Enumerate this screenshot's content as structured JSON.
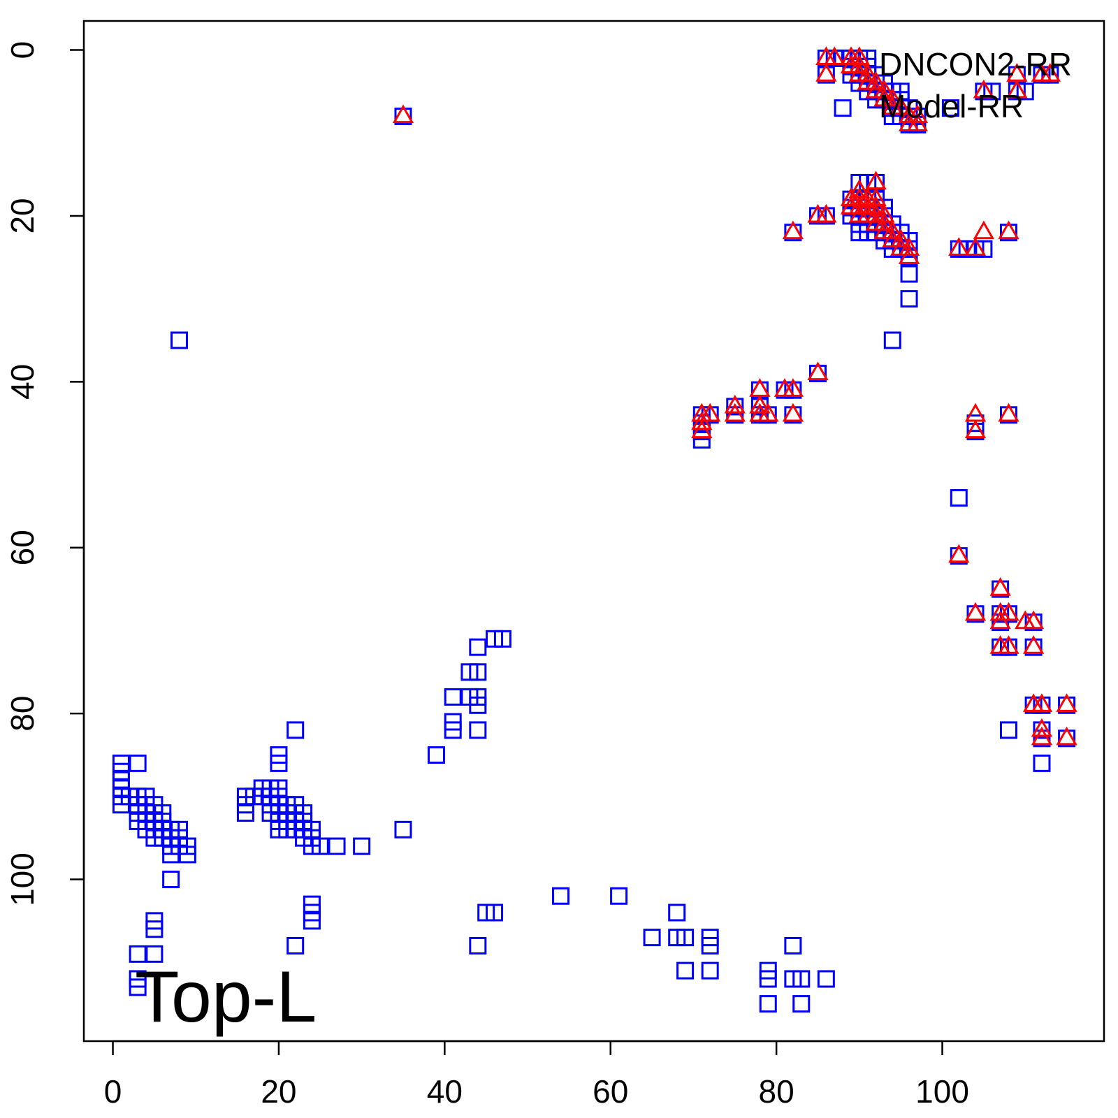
{
  "chart_data": {
    "type": "scatter",
    "title": "",
    "xlabel": "",
    "ylabel": "",
    "xlim": [
      -3.5,
      119.5
    ],
    "ylim": [
      119.5,
      -3.5
    ],
    "y_reversed": true,
    "xticks": [
      0,
      20,
      40,
      60,
      80,
      100
    ],
    "yticks": [
      0,
      20,
      40,
      60,
      80,
      100
    ],
    "grid": false,
    "legend_position": "top-right",
    "annotation": "Top-L",
    "series": [
      {
        "name": "DNCON2-RR",
        "marker": "square",
        "color": "#0000ff",
        "points": [
          [
            35,
            8
          ],
          [
            86,
            1
          ],
          [
            87,
            1
          ],
          [
            88,
            1
          ],
          [
            89,
            1
          ],
          [
            90,
            1
          ],
          [
            91,
            1
          ],
          [
            86,
            3
          ],
          [
            88,
            7
          ],
          [
            89,
            2
          ],
          [
            90,
            2
          ],
          [
            91,
            2
          ],
          [
            89,
            3
          ],
          [
            90,
            3
          ],
          [
            91,
            3
          ],
          [
            92,
            3
          ],
          [
            90,
            4
          ],
          [
            91,
            4
          ],
          [
            92,
            4
          ],
          [
            93,
            4
          ],
          [
            91,
            5
          ],
          [
            92,
            5
          ],
          [
            93,
            5
          ],
          [
            94,
            5
          ],
          [
            95,
            5
          ],
          [
            92,
            6
          ],
          [
            93,
            6
          ],
          [
            94,
            6
          ],
          [
            95,
            6
          ],
          [
            94,
            7
          ],
          [
            95,
            7
          ],
          [
            96,
            7
          ],
          [
            94,
            8
          ],
          [
            95,
            8
          ],
          [
            96,
            8
          ],
          [
            96,
            9
          ],
          [
            97,
            9
          ],
          [
            97,
            8
          ],
          [
            101,
            7
          ],
          [
            105,
            5
          ],
          [
            106,
            5
          ],
          [
            109,
            3
          ],
          [
            109,
            5
          ],
          [
            110,
            5
          ],
          [
            112,
            3
          ],
          [
            113,
            3
          ],
          [
            90,
            16
          ],
          [
            91,
            16
          ],
          [
            92,
            16
          ],
          [
            89,
            18
          ],
          [
            90,
            18
          ],
          [
            91,
            18
          ],
          [
            92,
            18
          ],
          [
            89,
            19
          ],
          [
            90,
            19
          ],
          [
            91,
            19
          ],
          [
            92,
            19
          ],
          [
            93,
            19
          ],
          [
            89,
            20
          ],
          [
            90,
            20
          ],
          [
            91,
            20
          ],
          [
            92,
            20
          ],
          [
            93,
            20
          ],
          [
            90,
            21
          ],
          [
            91,
            21
          ],
          [
            92,
            21
          ],
          [
            93,
            21
          ],
          [
            94,
            21
          ],
          [
            90,
            22
          ],
          [
            91,
            22
          ],
          [
            92,
            22
          ],
          [
            93,
            22
          ],
          [
            94,
            22
          ],
          [
            95,
            22
          ],
          [
            93,
            23
          ],
          [
            94,
            23
          ],
          [
            95,
            23
          ],
          [
            96,
            23
          ],
          [
            94,
            24
          ],
          [
            95,
            24
          ],
          [
            96,
            24
          ],
          [
            96,
            25
          ],
          [
            96,
            27
          ],
          [
            96,
            30
          ],
          [
            94,
            35
          ],
          [
            82,
            22
          ],
          [
            85,
            20
          ],
          [
            86,
            20
          ],
          [
            102,
            24
          ],
          [
            103,
            24
          ],
          [
            104,
            24
          ],
          [
            105,
            24
          ],
          [
            108,
            22
          ],
          [
            85,
            39
          ],
          [
            78,
            41
          ],
          [
            81,
            41
          ],
          [
            82,
            41
          ],
          [
            75,
            43
          ],
          [
            78,
            43
          ],
          [
            71,
            44
          ],
          [
            72,
            44
          ],
          [
            75,
            44
          ],
          [
            78,
            44
          ],
          [
            79,
            44
          ],
          [
            82,
            44
          ],
          [
            71,
            45
          ],
          [
            71,
            46
          ],
          [
            71,
            47
          ],
          [
            104,
            45
          ],
          [
            104,
            46
          ],
          [
            108,
            44
          ],
          [
            102,
            54
          ],
          [
            102,
            61
          ],
          [
            107,
            65
          ],
          [
            104,
            68
          ],
          [
            107,
            68
          ],
          [
            108,
            68
          ],
          [
            107,
            69
          ],
          [
            111,
            69
          ],
          [
            107,
            72
          ],
          [
            108,
            72
          ],
          [
            111,
            72
          ],
          [
            111,
            79
          ],
          [
            112,
            79
          ],
          [
            115,
            79
          ],
          [
            108,
            82
          ],
          [
            112,
            82
          ],
          [
            112,
            83
          ],
          [
            115,
            83
          ],
          [
            112,
            86
          ],
          [
            8,
            35
          ],
          [
            1,
            86
          ],
          [
            3,
            86
          ],
          [
            1,
            87
          ],
          [
            1,
            88
          ],
          [
            1,
            89
          ],
          [
            1,
            90
          ],
          [
            2,
            90
          ],
          [
            3,
            90
          ],
          [
            4,
            90
          ],
          [
            1,
            91
          ],
          [
            3,
            91
          ],
          [
            4,
            91
          ],
          [
            5,
            91
          ],
          [
            3,
            92
          ],
          [
            4,
            92
          ],
          [
            5,
            92
          ],
          [
            6,
            92
          ],
          [
            3,
            93
          ],
          [
            4,
            93
          ],
          [
            5,
            93
          ],
          [
            6,
            93
          ],
          [
            4,
            94
          ],
          [
            5,
            94
          ],
          [
            6,
            94
          ],
          [
            7,
            94
          ],
          [
            8,
            94
          ],
          [
            5,
            95
          ],
          [
            6,
            95
          ],
          [
            7,
            95
          ],
          [
            8,
            95
          ],
          [
            7,
            96
          ],
          [
            8,
            96
          ],
          [
            9,
            96
          ],
          [
            7,
            97
          ],
          [
            9,
            97
          ],
          [
            7,
            100
          ],
          [
            5,
            105
          ],
          [
            5,
            106
          ],
          [
            3,
            109
          ],
          [
            5,
            109
          ],
          [
            3,
            112
          ],
          [
            3,
            113
          ],
          [
            22,
            82
          ],
          [
            20,
            85
          ],
          [
            20,
            86
          ],
          [
            18,
            89
          ],
          [
            19,
            89
          ],
          [
            20,
            89
          ],
          [
            16,
            90
          ],
          [
            17,
            90
          ],
          [
            18,
            90
          ],
          [
            19,
            90
          ],
          [
            20,
            90
          ],
          [
            16,
            91
          ],
          [
            19,
            91
          ],
          [
            20,
            91
          ],
          [
            21,
            91
          ],
          [
            22,
            91
          ],
          [
            16,
            92
          ],
          [
            19,
            92
          ],
          [
            20,
            92
          ],
          [
            21,
            92
          ],
          [
            22,
            92
          ],
          [
            23,
            92
          ],
          [
            20,
            93
          ],
          [
            21,
            93
          ],
          [
            22,
            93
          ],
          [
            23,
            93
          ],
          [
            20,
            94
          ],
          [
            21,
            94
          ],
          [
            22,
            94
          ],
          [
            23,
            94
          ],
          [
            24,
            94
          ],
          [
            23,
            95
          ],
          [
            24,
            95
          ],
          [
            24,
            96
          ],
          [
            25,
            96
          ],
          [
            27,
            96
          ],
          [
            30,
            96
          ],
          [
            35,
            94
          ],
          [
            24,
            103
          ],
          [
            24,
            104
          ],
          [
            24,
            105
          ],
          [
            22,
            108
          ],
          [
            39,
            85
          ],
          [
            41,
            78
          ],
          [
            44,
            78
          ],
          [
            41,
            81
          ],
          [
            41,
            82
          ],
          [
            43,
            75
          ],
          [
            44,
            75
          ],
          [
            43,
            78
          ],
          [
            44,
            79
          ],
          [
            44,
            82
          ],
          [
            44,
            72
          ],
          [
            46,
            71
          ],
          [
            47,
            71
          ],
          [
            45,
            104
          ],
          [
            46,
            104
          ],
          [
            44,
            108
          ],
          [
            54,
            102
          ],
          [
            61,
            102
          ],
          [
            65,
            107
          ],
          [
            68,
            104
          ],
          [
            68,
            107
          ],
          [
            69,
            107
          ],
          [
            69,
            111
          ],
          [
            72,
            107
          ],
          [
            72,
            108
          ],
          [
            72,
            111
          ],
          [
            79,
            111
          ],
          [
            79,
            112
          ],
          [
            79,
            115
          ],
          [
            82,
            108
          ],
          [
            82,
            112
          ],
          [
            83,
            112
          ],
          [
            83,
            115
          ],
          [
            86,
            112
          ]
        ]
      },
      {
        "name": "Model-RR",
        "marker": "triangle",
        "color": "#ff0000",
        "points": [
          [
            35,
            8
          ],
          [
            86,
            1
          ],
          [
            87,
            1
          ],
          [
            89,
            1
          ],
          [
            90,
            1
          ],
          [
            86,
            3
          ],
          [
            89,
            2
          ],
          [
            90,
            2
          ],
          [
            90,
            3
          ],
          [
            91,
            3
          ],
          [
            91,
            4
          ],
          [
            92,
            4
          ],
          [
            92,
            5
          ],
          [
            93,
            5
          ],
          [
            93,
            6
          ],
          [
            94,
            6
          ],
          [
            94,
            7
          ],
          [
            95,
            7
          ],
          [
            96,
            8
          ],
          [
            97,
            8
          ],
          [
            96,
            9
          ],
          [
            97,
            9
          ],
          [
            105,
            5
          ],
          [
            109,
            3
          ],
          [
            109,
            5
          ],
          [
            112,
            3
          ],
          [
            113,
            3
          ],
          [
            92,
            16
          ],
          [
            90,
            17
          ],
          [
            89,
            18
          ],
          [
            90,
            18
          ],
          [
            91,
            18
          ],
          [
            92,
            18
          ],
          [
            89,
            19
          ],
          [
            90,
            19
          ],
          [
            91,
            19
          ],
          [
            92,
            19
          ],
          [
            90,
            20
          ],
          [
            91,
            20
          ],
          [
            92,
            20
          ],
          [
            93,
            20
          ],
          [
            92,
            21
          ],
          [
            93,
            21
          ],
          [
            93,
            22
          ],
          [
            94,
            22
          ],
          [
            94,
            23
          ],
          [
            95,
            23
          ],
          [
            95,
            24
          ],
          [
            96,
            24
          ],
          [
            96,
            25
          ],
          [
            82,
            22
          ],
          [
            85,
            20
          ],
          [
            86,
            20
          ],
          [
            102,
            24
          ],
          [
            104,
            24
          ],
          [
            105,
            22
          ],
          [
            108,
            22
          ],
          [
            85,
            39
          ],
          [
            78,
            41
          ],
          [
            81,
            41
          ],
          [
            82,
            41
          ],
          [
            75,
            43
          ],
          [
            78,
            43
          ],
          [
            71,
            44
          ],
          [
            72,
            44
          ],
          [
            75,
            44
          ],
          [
            78,
            44
          ],
          [
            79,
            44
          ],
          [
            82,
            44
          ],
          [
            71,
            45
          ],
          [
            71,
            46
          ],
          [
            104,
            44
          ],
          [
            104,
            46
          ],
          [
            108,
            44
          ],
          [
            102,
            61
          ],
          [
            107,
            65
          ],
          [
            104,
            68
          ],
          [
            107,
            68
          ],
          [
            108,
            68
          ],
          [
            107,
            69
          ],
          [
            110,
            69
          ],
          [
            111,
            69
          ],
          [
            107,
            72
          ],
          [
            108,
            72
          ],
          [
            111,
            72
          ],
          [
            111,
            79
          ],
          [
            112,
            79
          ],
          [
            115,
            79
          ],
          [
            112,
            82
          ],
          [
            112,
            83
          ],
          [
            115,
            83
          ]
        ]
      }
    ]
  }
}
